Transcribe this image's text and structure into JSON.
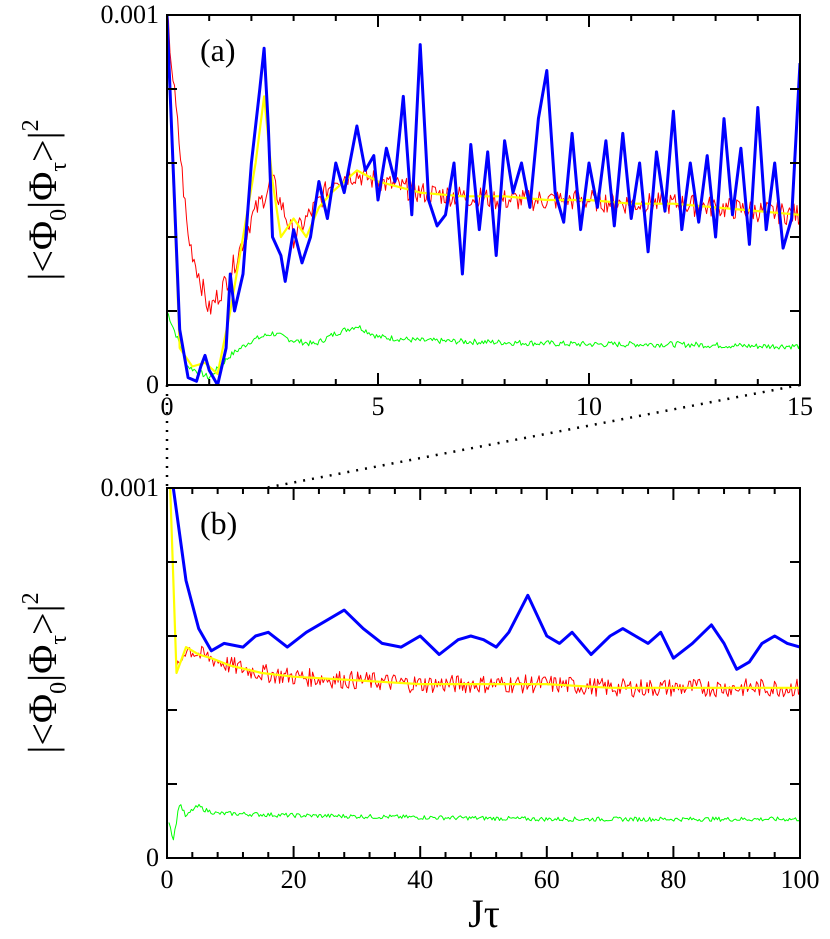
{
  "colors": {
    "blue": "#0000ff",
    "red": "#ff0000",
    "yellow": "#ffff00",
    "green": "#00ff00",
    "axis": "#000000"
  },
  "ylabel_parts": {
    "open": "|<Φ",
    "sub0": "0",
    "bar": "|Φ",
    "subtau": "τ",
    "close": ">|",
    "sup": "2"
  },
  "xlabel": "Jτ",
  "chart_data": [
    {
      "type": "line",
      "panel": "(a)",
      "xlim": [
        0,
        15
      ],
      "ylim": [
        0,
        0.001
      ],
      "xticks": [
        "0",
        "5",
        "10",
        "15"
      ],
      "yticks_labeled": [
        "0",
        "0.001"
      ],
      "grid": false,
      "series": [
        {
          "color": "blue",
          "x": [
            0.0,
            0.3,
            0.5,
            0.7,
            0.8,
            0.9,
            1.0,
            1.2,
            1.4,
            1.5,
            1.6,
            1.8,
            2.0,
            2.2,
            2.3,
            2.4,
            2.5,
            2.7,
            2.8,
            3.0,
            3.2,
            3.4,
            3.6,
            3.8,
            4.0,
            4.2,
            4.5,
            4.7,
            4.9,
            5.0,
            5.2,
            5.4,
            5.6,
            5.8,
            6.0,
            6.2,
            6.4,
            6.6,
            6.8,
            7.0,
            7.2,
            7.4,
            7.6,
            7.8,
            8.0,
            8.2,
            8.4,
            8.6,
            8.8,
            9.0,
            9.2,
            9.4,
            9.6,
            9.8,
            10.0,
            10.2,
            10.4,
            10.6,
            10.8,
            11.0,
            11.2,
            11.4,
            11.6,
            11.8,
            12.0,
            12.2,
            12.4,
            12.6,
            12.8,
            13.0,
            13.2,
            13.4,
            13.6,
            13.8,
            14.0,
            14.2,
            14.4,
            14.6,
            14.8,
            15.0
          ],
          "y": [
            0.001,
            0.00015,
            2e-05,
            1e-05,
            5e-05,
            8e-05,
            4e-05,
            0.0,
            0.0001,
            0.0003,
            0.0002,
            0.0003,
            0.0006,
            0.0008,
            0.00091,
            0.0007,
            0.0004,
            0.00035,
            0.00028,
            0.00042,
            0.00033,
            0.0004,
            0.00055,
            0.00045,
            0.0006,
            0.00052,
            0.0007,
            0.00058,
            0.00062,
            0.0005,
            0.00064,
            0.00055,
            0.00078,
            0.00046,
            0.00092,
            0.0005,
            0.00043,
            0.00046,
            0.0006,
            0.0003,
            0.00065,
            0.00042,
            0.00063,
            0.00035,
            0.00066,
            0.00052,
            0.0006,
            0.00048,
            0.00072,
            0.00085,
            0.00052,
            0.00044,
            0.00068,
            0.00042,
            0.0006,
            0.00048,
            0.00066,
            0.00043,
            0.00068,
            0.00045,
            0.0006,
            0.00036,
            0.00063,
            0.00047,
            0.00074,
            0.00042,
            0.0006,
            0.00044,
            0.00062,
            0.0004,
            0.00072,
            0.00046,
            0.00064,
            0.00038,
            0.00075,
            0.00042,
            0.0006,
            0.00037,
            0.00045,
            0.00087
          ]
        },
        {
          "color": "yellow",
          "x": [
            0.0,
            0.3,
            0.6,
            0.9,
            1.2,
            1.5,
            1.8,
            2.1,
            2.3,
            2.5,
            2.7,
            3.0,
            3.3,
            3.6,
            3.9,
            4.2,
            4.5,
            5.0,
            6.0,
            7.0,
            8.0,
            9.0,
            10.0,
            11.0,
            12.0,
            13.0,
            14.0,
            15.0
          ],
          "y": [
            0.001,
            0.0001,
            5e-05,
            6e-05,
            3e-05,
            0.0002,
            0.0004,
            0.0006,
            0.00078,
            0.00055,
            0.0004,
            0.00045,
            0.0004,
            0.00048,
            0.00052,
            0.00055,
            0.00058,
            0.00055,
            0.00052,
            0.00051,
            0.00051,
            0.0005,
            0.0005,
            0.00049,
            0.00049,
            0.00048,
            0.00047,
            0.00046
          ]
        },
        {
          "color": "red",
          "noise": 3e-05,
          "x": [
            0.0,
            0.5,
            1.0,
            1.5,
            2.0,
            2.5,
            3.0,
            3.5,
            4.0,
            4.5,
            5.0,
            6.0,
            7.0,
            8.0,
            9.0,
            10.0,
            11.0,
            12.0,
            13.0,
            14.0,
            15.0
          ],
          "y": [
            0.001,
            0.0004,
            0.0002,
            0.0003,
            0.00045,
            0.00055,
            0.0004,
            0.00048,
            0.00056,
            0.00057,
            0.00055,
            0.00052,
            0.00051,
            0.0005,
            0.0005,
            0.0005,
            0.00049,
            0.00049,
            0.00048,
            0.00047,
            0.00046
          ]
        },
        {
          "color": "green",
          "noise": 8e-06,
          "x": [
            0.0,
            0.5,
            1.0,
            1.5,
            2.0,
            2.5,
            3.0,
            3.5,
            4.0,
            4.5,
            5.0,
            6.0,
            8.0,
            10.0,
            12.0,
            14.0,
            15.0
          ],
          "y": [
            0.0002,
            5e-05,
            2e-05,
            8e-05,
            0.00012,
            0.00014,
            0.00012,
            0.00011,
            0.00014,
            0.00016,
            0.00013,
            0.00012,
            0.000115,
            0.00011,
            0.00011,
            0.000105,
            0.000105
          ]
        }
      ]
    },
    {
      "type": "line",
      "panel": "(b)",
      "xlim": [
        0,
        100
      ],
      "ylim": [
        0,
        0.001
      ],
      "xticks": [
        "0",
        "20",
        "40",
        "60",
        "80",
        "100"
      ],
      "yticks_labeled": [
        "0",
        "0.001"
      ],
      "grid": false,
      "series": [
        {
          "color": "blue",
          "x": [
            1,
            3,
            5,
            7,
            9,
            12,
            14,
            16,
            19,
            22,
            25,
            28,
            31,
            34,
            37,
            40,
            43,
            46,
            48,
            50,
            52,
            54,
            57,
            60,
            62,
            64,
            67,
            70,
            72,
            74,
            76,
            78,
            80,
            83,
            86,
            88,
            90,
            92,
            94,
            96,
            98,
            100
          ],
          "y": [
            0.001,
            0.00075,
            0.00062,
            0.00056,
            0.00058,
            0.00057,
            0.0006,
            0.00061,
            0.00057,
            0.00061,
            0.00064,
            0.00067,
            0.00062,
            0.00058,
            0.00057,
            0.0006,
            0.00055,
            0.00059,
            0.0006,
            0.00059,
            0.00057,
            0.00061,
            0.00071,
            0.0006,
            0.00058,
            0.00061,
            0.00055,
            0.0006,
            0.00062,
            0.0006,
            0.00058,
            0.00061,
            0.00054,
            0.00058,
            0.00063,
            0.00058,
            0.00051,
            0.00053,
            0.00058,
            0.0006,
            0.00058,
            0.00057
          ]
        },
        {
          "color": "red",
          "noise": 2.5e-05,
          "x": [
            0.5,
            1.5,
            3,
            5,
            7,
            10,
            15,
            20,
            30,
            40,
            50,
            60,
            70,
            80,
            90,
            100
          ],
          "y": [
            0.001,
            0.0005,
            0.00057,
            0.00055,
            0.00054,
            0.00052,
            0.0005,
            0.00049,
            0.00048,
            0.00047,
            0.00047,
            0.00047,
            0.00046,
            0.00046,
            0.00046,
            0.00046
          ]
        },
        {
          "color": "yellow",
          "x": [
            0.5,
            1.5,
            3,
            5,
            7,
            10,
            15,
            20,
            30,
            40,
            50,
            60,
            70,
            80,
            90,
            100
          ],
          "y": [
            0.001,
            0.0005,
            0.00057,
            0.00055,
            0.00054,
            0.00052,
            0.0005,
            0.00049,
            0.00048,
            0.00047,
            0.00047,
            0.00047,
            0.00046,
            0.00046,
            0.00046,
            0.00046
          ]
        },
        {
          "color": "green",
          "noise": 6e-06,
          "x": [
            0.3,
            1.0,
            2.0,
            3.0,
            4.0,
            5.0,
            6.0,
            8.0,
            10,
            20,
            40,
            60,
            80,
            100
          ],
          "y": [
            0.0001,
            5e-05,
            0.00015,
            0.00011,
            0.00013,
            0.00014,
            0.00013,
            0.00012,
            0.00012,
            0.000115,
            0.00011,
            0.000105,
            0.000105,
            0.000105
          ]
        }
      ]
    }
  ]
}
